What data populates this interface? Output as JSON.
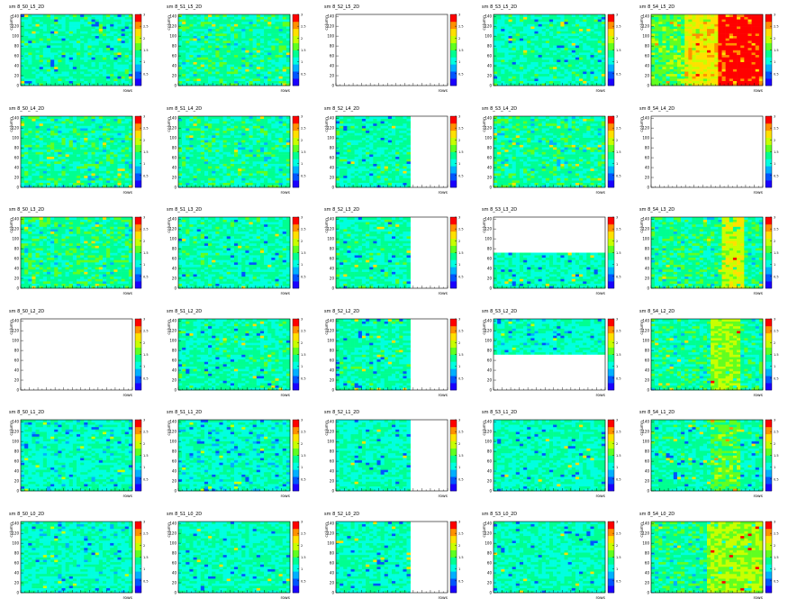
{
  "chart_data": {
    "type": "heatmap",
    "grid_layout": {
      "rows": 6,
      "columns": 5
    },
    "colorscale": [
      "#1a00ff",
      "#0055ff",
      "#00b0ff",
      "#00ffe0",
      "#00ff90",
      "#60ff20",
      "#c8ff00",
      "#ffe000",
      "#ff9000",
      "#ff0000"
    ],
    "ylabel": "column",
    "xlabel": "rows",
    "y_ticks": [
      "0",
      "20",
      "40",
      "60",
      "80",
      "100",
      "120",
      "140"
    ],
    "z_ticks": [
      "0.5",
      "1",
      "1.5",
      "2",
      "2.5",
      "3"
    ],
    "ylim": [
      0,
      144
    ],
    "zlim": [
      0,
      3
    ],
    "panels": [
      {
        "title": "sm 8_S0_L5_2D",
        "fill_x": 1.0,
        "fill_y": [
          0,
          1
        ],
        "base": 1.25,
        "hot_cols": []
      },
      {
        "title": "sm 8_S1_L5_2D",
        "fill_x": 1.0,
        "fill_y": [
          0,
          1
        ],
        "base": 1.3,
        "hot_cols": []
      },
      {
        "title": "sm 8_S2_L5_2D",
        "fill_x": 0,
        "fill_y": [
          0,
          1
        ],
        "base": 0,
        "hot_cols": []
      },
      {
        "title": "sm 8_S3_L5_2D",
        "fill_x": 1.0,
        "fill_y": [
          0,
          1
        ],
        "base": 1.25,
        "hot_cols": []
      },
      {
        "title": "sm 8_S4_L5_2D",
        "fill_x": 1.0,
        "fill_y": [
          0,
          1
        ],
        "base": 1.6,
        "hot_cols": [
          [
            0.3,
            0.6,
            2.2
          ],
          [
            0.6,
            1.0,
            2.9
          ]
        ]
      },
      {
        "title": "sm 8_S0_L4_2D",
        "fill_x": 1.0,
        "fill_y": [
          0,
          1
        ],
        "base": 1.3,
        "hot_cols": []
      },
      {
        "title": "sm 8_S1_L4_2D",
        "fill_x": 1.0,
        "fill_y": [
          0,
          1
        ],
        "base": 1.3,
        "hot_cols": []
      },
      {
        "title": "sm 8_S2_L4_2D",
        "fill_x": 0.67,
        "fill_y": [
          0,
          1
        ],
        "base": 1.25,
        "hot_cols": []
      },
      {
        "title": "sm 8_S3_L4_2D",
        "fill_x": 1.0,
        "fill_y": [
          0,
          1
        ],
        "base": 1.3,
        "hot_cols": []
      },
      {
        "title": "sm 8_S4_L4_2D",
        "fill_x": 0,
        "fill_y": [
          0,
          1
        ],
        "base": 0,
        "hot_cols": []
      },
      {
        "title": "sm 8_S0_L3_2D",
        "fill_x": 1.0,
        "fill_y": [
          0,
          1
        ],
        "base": 1.35,
        "hot_cols": []
      },
      {
        "title": "sm 8_S1_L3_2D",
        "fill_x": 1.0,
        "fill_y": [
          0,
          1
        ],
        "base": 1.25,
        "hot_cols": []
      },
      {
        "title": "sm 8_S2_L3_2D",
        "fill_x": 0.67,
        "fill_y": [
          0,
          1
        ],
        "base": 1.25,
        "hot_cols": []
      },
      {
        "title": "sm 8_S3_L3_2D",
        "fill_x": 1.0,
        "fill_y": [
          0,
          0.5
        ],
        "base": 1.2,
        "hot_cols": []
      },
      {
        "title": "sm 8_S4_L3_2D",
        "fill_x": 1.0,
        "fill_y": [
          0,
          1
        ],
        "base": 1.35,
        "hot_cols": [
          [
            0.65,
            0.85,
            2.0
          ]
        ]
      },
      {
        "title": "sm 8_S0_L2_2D",
        "fill_x": 0,
        "fill_y": [
          0,
          1
        ],
        "base": 0,
        "hot_cols": []
      },
      {
        "title": "sm 8_S1_L2_2D",
        "fill_x": 1.0,
        "fill_y": [
          0,
          1
        ],
        "base": 1.25,
        "hot_cols": []
      },
      {
        "title": "sm 8_S2_L2_2D",
        "fill_x": 0.67,
        "fill_y": [
          0,
          1
        ],
        "base": 1.25,
        "hot_cols": []
      },
      {
        "title": "sm 8_S3_L2_2D",
        "fill_x": 1.0,
        "fill_y": [
          0.5,
          1
        ],
        "base": 1.15,
        "hot_cols": []
      },
      {
        "title": "sm 8_S4_L2_2D",
        "fill_x": 1.0,
        "fill_y": [
          0,
          1
        ],
        "base": 1.3,
        "hot_cols": [
          [
            0.55,
            0.8,
            1.8
          ]
        ]
      },
      {
        "title": "sm 8_S0_L1_2D",
        "fill_x": 1.0,
        "fill_y": [
          0,
          1
        ],
        "base": 1.15,
        "hot_cols": []
      },
      {
        "title": "sm 8_S1_L1_2D",
        "fill_x": 1.0,
        "fill_y": [
          0,
          1
        ],
        "base": 1.15,
        "hot_cols": []
      },
      {
        "title": "sm 8_S2_L1_2D",
        "fill_x": 0.67,
        "fill_y": [
          0,
          1
        ],
        "base": 1.2,
        "hot_cols": []
      },
      {
        "title": "sm 8_S3_L1_2D",
        "fill_x": 1.0,
        "fill_y": [
          0,
          1
        ],
        "base": 1.2,
        "hot_cols": []
      },
      {
        "title": "sm 8_S4_L1_2D",
        "fill_x": 1.0,
        "fill_y": [
          0,
          1
        ],
        "base": 1.25,
        "hot_cols": [
          [
            0.55,
            0.8,
            1.6
          ]
        ]
      },
      {
        "title": "sm 8_S0_L0_2D",
        "fill_x": 1.0,
        "fill_y": [
          0,
          1
        ],
        "base": 1.15,
        "hot_cols": []
      },
      {
        "title": "sm 8_S1_L0_2D",
        "fill_x": 1.0,
        "fill_y": [
          0,
          1
        ],
        "base": 1.2,
        "hot_cols": []
      },
      {
        "title": "sm 8_S2_L0_2D",
        "fill_x": 0.67,
        "fill_y": [
          0,
          1
        ],
        "base": 1.2,
        "hot_cols": []
      },
      {
        "title": "sm 8_S3_L0_2D",
        "fill_x": 1.0,
        "fill_y": [
          0,
          1
        ],
        "base": 1.2,
        "hot_cols": []
      },
      {
        "title": "sm 8_S4_L0_2D",
        "fill_x": 1.0,
        "fill_y": [
          0,
          1
        ],
        "base": 1.35,
        "hot_cols": [
          [
            0.5,
            1.0,
            1.8
          ]
        ]
      }
    ]
  }
}
